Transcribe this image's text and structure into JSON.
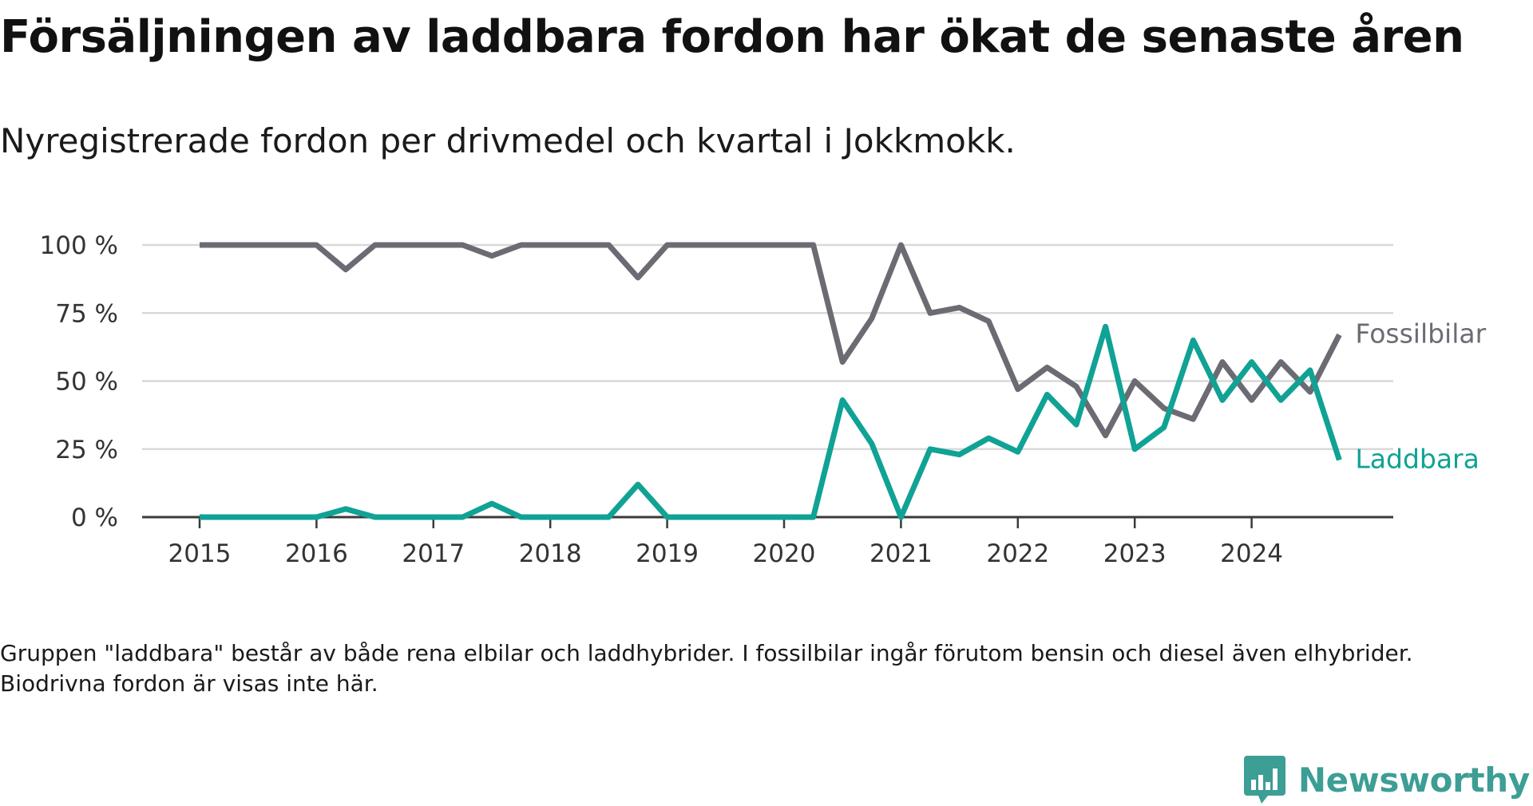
{
  "header": {
    "title": "Försäljningen av laddbara fordon har ökat de senaste åren",
    "subtitle": "Nyregistrerade fordon per drivmedel och kvartal i Jokkmokk."
  },
  "footnote": "Gruppen \"laddbara\" består av både rena elbilar och laddhybrider. I fossilbilar ingår förutom bensin och diesel även elhybrider. Biodrivna fordon är visas inte här.",
  "brand": {
    "name": "Newsworthy",
    "icon": "newsworthy-logo-icon",
    "color": "#3d9e95"
  },
  "chart_data": {
    "type": "line",
    "x": [
      "2015-Q1",
      "2015-Q2",
      "2015-Q3",
      "2015-Q4",
      "2016-Q1",
      "2016-Q2",
      "2016-Q3",
      "2016-Q4",
      "2017-Q1",
      "2017-Q2",
      "2017-Q3",
      "2017-Q4",
      "2018-Q1",
      "2018-Q2",
      "2018-Q3",
      "2018-Q4",
      "2019-Q1",
      "2019-Q2",
      "2019-Q3",
      "2019-Q4",
      "2020-Q1",
      "2020-Q2",
      "2020-Q3",
      "2020-Q4",
      "2021-Q1",
      "2021-Q2",
      "2021-Q3",
      "2021-Q4",
      "2022-Q1",
      "2022-Q2",
      "2022-Q3",
      "2022-Q4",
      "2023-Q1",
      "2023-Q2",
      "2023-Q3",
      "2023-Q4",
      "2024-Q1",
      "2024-Q2",
      "2024-Q3",
      "2024-Q4"
    ],
    "series": [
      {
        "name": "Fossilbilar",
        "color": "#6b6b73",
        "values": [
          100,
          100,
          100,
          100,
          100,
          91,
          100,
          100,
          100,
          100,
          96,
          100,
          100,
          100,
          100,
          88,
          100,
          100,
          100,
          100,
          100,
          100,
          57,
          73,
          100,
          75,
          77,
          72,
          47,
          55,
          48,
          30,
          50,
          40,
          36,
          57,
          43,
          57,
          46,
          67
        ]
      },
      {
        "name": "Laddbara",
        "color": "#10a295",
        "values": [
          0,
          0,
          0,
          0,
          0,
          3,
          0,
          0,
          0,
          0,
          5,
          0,
          0,
          0,
          0,
          12,
          0,
          0,
          0,
          0,
          0,
          0,
          43,
          27,
          0,
          25,
          23,
          29,
          24,
          45,
          34,
          70,
          25,
          33,
          65,
          43,
          57,
          43,
          54,
          21
        ]
      }
    ],
    "x_ticks": [
      "2015",
      "2016",
      "2017",
      "2018",
      "2019",
      "2020",
      "2021",
      "2022",
      "2023",
      "2024"
    ],
    "y_ticks": [
      "0 %",
      "25 %",
      "50 %",
      "75 %",
      "100 %"
    ],
    "ylim": [
      0,
      100
    ],
    "grid": true,
    "legend": "direct labels at line ends"
  }
}
